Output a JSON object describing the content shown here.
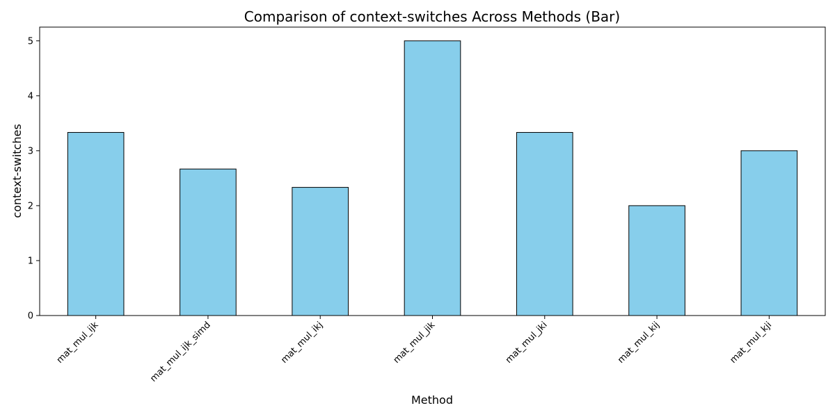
{
  "chart_data": {
    "type": "bar",
    "title": "Comparison of context-switches Across Methods (Bar)",
    "xlabel": "Method",
    "ylabel": "context-switches",
    "categories": [
      "mat_mul_ijk",
      "mat_mul_ijk_simd",
      "mat_mul_ikj",
      "mat_mul_jik",
      "mat_mul_jki",
      "mat_mul_kij",
      "mat_mul_kji"
    ],
    "values": [
      3.333,
      2.667,
      2.333,
      5.0,
      3.333,
      2.0,
      3.0
    ],
    "ylim": [
      0,
      5.25
    ],
    "yticks": [
      0,
      1,
      2,
      3,
      4,
      5
    ],
    "bar_color": "#87ceeb",
    "edge_color": "#000000",
    "grid": false
  }
}
